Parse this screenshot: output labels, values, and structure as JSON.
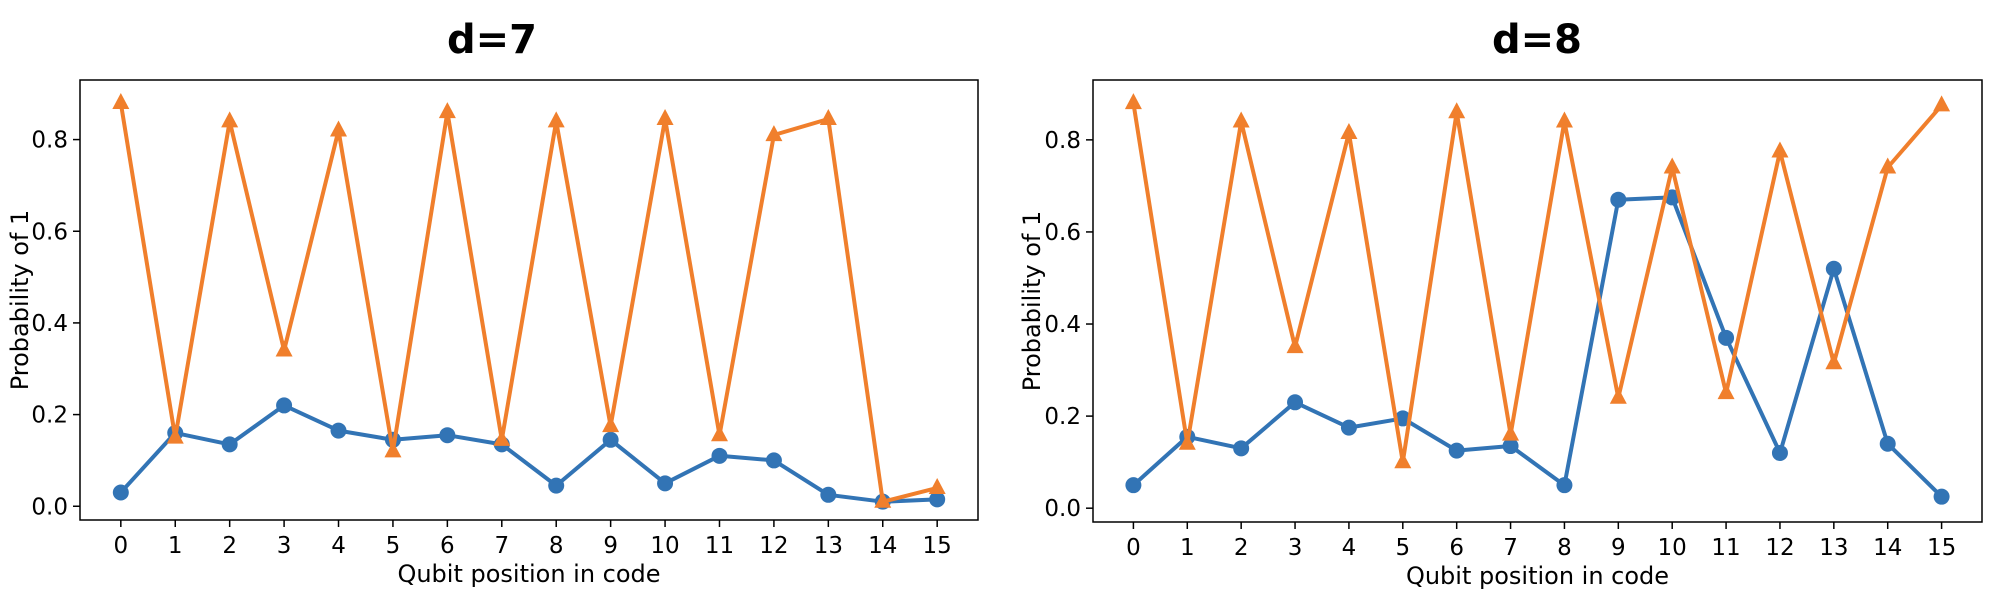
{
  "chart_data": [
    {
      "type": "line",
      "title": "d=7",
      "xlabel": "Qubit position in code",
      "ylabel": "Probability of 1",
      "x": [
        0,
        1,
        2,
        3,
        4,
        5,
        6,
        7,
        8,
        9,
        10,
        11,
        12,
        13,
        14,
        15
      ],
      "xticks": [
        "0",
        "1",
        "2",
        "3",
        "4",
        "5",
        "6",
        "7",
        "8",
        "9",
        "10",
        "11",
        "12",
        "13",
        "14",
        "15"
      ],
      "yticks": [
        "0.0",
        "0.2",
        "0.4",
        "0.6",
        "0.8"
      ],
      "ytick_values": [
        0.0,
        0.2,
        0.4,
        0.6,
        0.8
      ],
      "xlim": [
        -0.75,
        15.75
      ],
      "ylim": [
        -0.03,
        0.93
      ],
      "grid": false,
      "series": [
        {
          "marker": "circle",
          "color": "#3274b5",
          "values": [
            0.03,
            0.16,
            0.135,
            0.22,
            0.165,
            0.145,
            0.155,
            0.135,
            0.045,
            0.145,
            0.05,
            0.11,
            0.1,
            0.025,
            0.01,
            0.015
          ]
        },
        {
          "marker": "triangle",
          "color": "#f07f2c",
          "values": [
            0.88,
            0.15,
            0.84,
            0.34,
            0.82,
            0.12,
            0.86,
            0.145,
            0.84,
            0.175,
            0.845,
            0.155,
            0.81,
            0.845,
            0.01,
            0.04
          ]
        }
      ]
    },
    {
      "type": "line",
      "title": "d=8",
      "xlabel": "Qubit position in code",
      "ylabel": "Probability of 1",
      "x": [
        0,
        1,
        2,
        3,
        4,
        5,
        6,
        7,
        8,
        9,
        10,
        11,
        12,
        13,
        14,
        15
      ],
      "xticks": [
        "0",
        "1",
        "2",
        "3",
        "4",
        "5",
        "6",
        "7",
        "8",
        "9",
        "10",
        "11",
        "12",
        "13",
        "14",
        "15"
      ],
      "yticks": [
        "0.0",
        "0.2",
        "0.4",
        "0.6",
        "0.8"
      ],
      "ytick_values": [
        0.0,
        0.2,
        0.4,
        0.6,
        0.8
      ],
      "xlim": [
        -0.75,
        15.75
      ],
      "ylim": [
        -0.03,
        0.93
      ],
      "grid": false,
      "series": [
        {
          "marker": "circle",
          "color": "#3274b5",
          "values": [
            0.05,
            0.155,
            0.13,
            0.23,
            0.175,
            0.195,
            0.125,
            0.135,
            0.05,
            0.67,
            0.675,
            0.37,
            0.12,
            0.52,
            0.14,
            0.025
          ]
        },
        {
          "marker": "triangle",
          "color": "#f07f2c",
          "values": [
            0.88,
            0.14,
            0.84,
            0.35,
            0.815,
            0.1,
            0.86,
            0.16,
            0.84,
            0.24,
            0.74,
            0.25,
            0.775,
            0.315,
            0.74,
            0.875
          ]
        }
      ]
    }
  ]
}
